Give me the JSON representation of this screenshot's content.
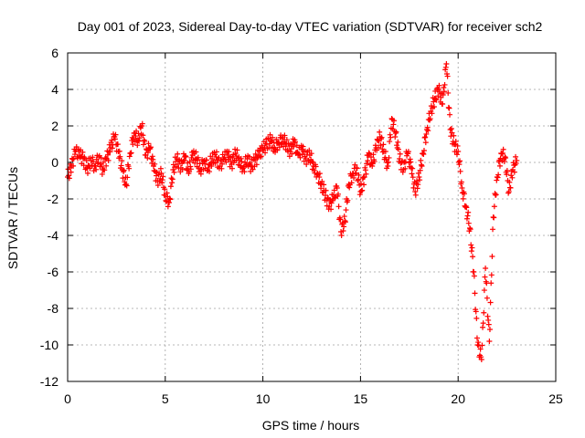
{
  "chart_data": {
    "type": "scatter",
    "title": "Day 001 of 2023, Sidereal Day-to-day VTEC variation (SDTVAR) for receiver sch2",
    "xlabel": "GPS time / hours",
    "ylabel": "SDTVAR / TECUs",
    "xlim": [
      0,
      25
    ],
    "ylim": [
      -12,
      6
    ],
    "xticks": [
      0,
      5,
      10,
      15,
      20,
      25
    ],
    "yticks": [
      -12,
      -10,
      -8,
      -6,
      -4,
      -2,
      0,
      2,
      4,
      6
    ],
    "grid": true,
    "marker": "+",
    "series": [
      {
        "name": "sch2",
        "color": "#ff0000",
        "x": [
          0.0,
          0.2,
          0.4,
          0.6,
          0.8,
          1.0,
          1.2,
          1.4,
          1.6,
          1.8,
          2.0,
          2.2,
          2.4,
          2.6,
          2.8,
          3.0,
          3.2,
          3.4,
          3.6,
          3.8,
          4.0,
          4.2,
          4.4,
          4.6,
          4.8,
          5.0,
          5.2,
          5.4,
          5.6,
          5.8,
          6.0,
          6.2,
          6.4,
          6.6,
          6.8,
          7.0,
          7.2,
          7.4,
          7.6,
          7.8,
          8.0,
          8.2,
          8.4,
          8.6,
          8.8,
          9.0,
          9.2,
          9.4,
          9.6,
          9.8,
          10.0,
          10.2,
          10.4,
          10.6,
          10.8,
          11.0,
          11.2,
          11.4,
          11.6,
          11.8,
          12.0,
          12.2,
          12.4,
          12.6,
          12.8,
          13.0,
          13.2,
          13.4,
          13.6,
          13.8,
          14.0,
          14.2,
          14.4,
          14.6,
          14.8,
          15.0,
          15.2,
          15.4,
          15.6,
          15.8,
          16.0,
          16.2,
          16.4,
          16.6,
          16.8,
          17.0,
          17.2,
          17.4,
          17.6,
          17.8,
          18.0,
          18.2,
          18.4,
          18.6,
          18.8,
          19.0,
          19.2,
          19.4,
          19.6,
          19.8,
          20.0,
          20.2,
          20.4,
          20.6,
          20.8,
          21.0,
          21.2,
          21.4,
          21.6,
          21.8,
          22.0,
          22.2,
          22.4,
          22.6,
          22.8,
          23.0
        ],
        "y": [
          -0.8,
          -0.2,
          0.6,
          0.4,
          0.2,
          -0.3,
          0.1,
          -0.2,
          0.3,
          -0.4,
          0.2,
          0.8,
          1.4,
          0.6,
          -0.4,
          -1.2,
          0.5,
          1.6,
          1.2,
          2.0,
          0.4,
          0.8,
          -0.2,
          -1.0,
          -0.6,
          -1.8,
          -2.2,
          -0.4,
          0.2,
          -0.3,
          0.3,
          -0.6,
          0.4,
          0.2,
          -0.4,
          0.1,
          -0.3,
          0.2,
          0.3,
          -0.2,
          0.2,
          0.4,
          -0.1,
          0.5,
          0.1,
          -0.3,
          0.2,
          -0.2,
          0.1,
          0.4,
          0.7,
          1.0,
          1.2,
          0.8,
          1.1,
          1.3,
          1.0,
          0.6,
          1.1,
          0.4,
          0.7,
          0.2,
          0.4,
          -0.2,
          -0.6,
          -1.2,
          -1.8,
          -2.4,
          -2.0,
          -1.4,
          -3.8,
          -3.2,
          -1.2,
          -0.6,
          -0.3,
          -1.6,
          -0.8,
          0.4,
          -0.2,
          0.8,
          1.4,
          0.6,
          -0.2,
          2.4,
          1.6,
          0.2,
          -0.4,
          0.5,
          -0.3,
          -1.6,
          -0.8,
          0.5,
          1.8,
          2.8,
          3.5,
          4.0,
          3.2,
          5.4,
          1.8,
          1.0,
          0.6,
          -1.4,
          -2.4,
          -3.6,
          -6.0,
          -10.0,
          -10.8,
          -5.8,
          -9.8,
          -3.0,
          -0.8,
          0.5,
          0.3,
          -1.6,
          -0.4,
          0.1
        ]
      }
    ]
  }
}
